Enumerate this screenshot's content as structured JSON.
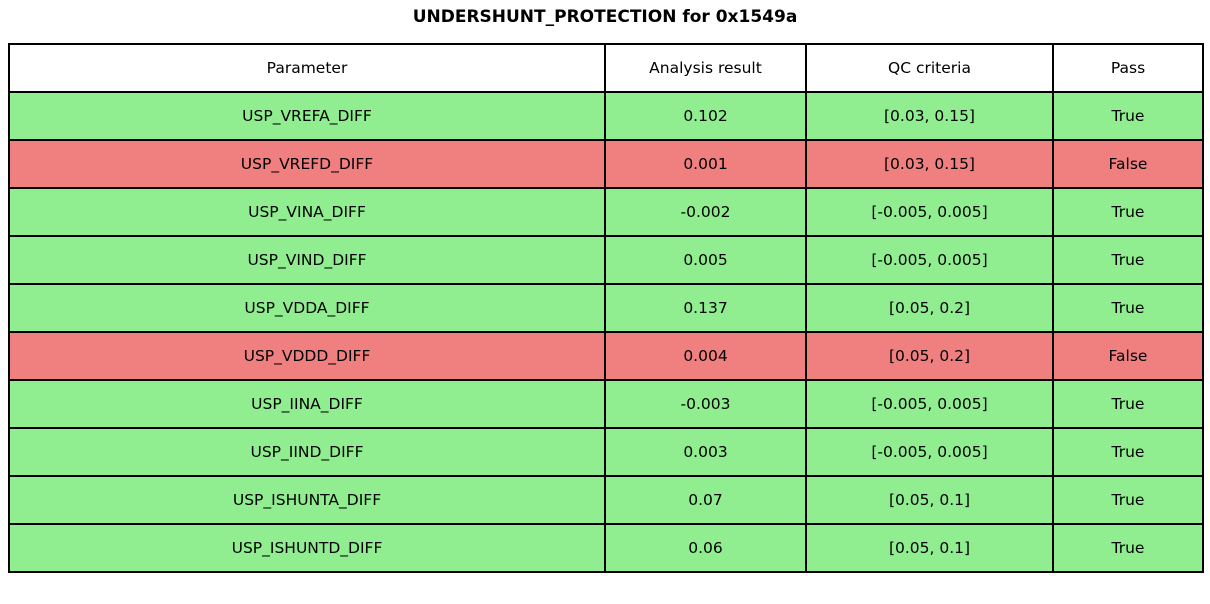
{
  "title": "UNDERSHUNT_PROTECTION for 0x1549a",
  "chart_data": {
    "type": "table",
    "title": "UNDERSHUNT_PROTECTION for 0x1549a",
    "columns": [
      "Parameter",
      "Analysis result",
      "QC criteria",
      "Pass"
    ],
    "rows": [
      {
        "parameter": "USP_VREFA_DIFF",
        "analysis_result": "0.102",
        "qc_criteria": "[0.03, 0.15]",
        "pass": "True"
      },
      {
        "parameter": "USP_VREFD_DIFF",
        "analysis_result": "0.001",
        "qc_criteria": "[0.03, 0.15]",
        "pass": "False"
      },
      {
        "parameter": "USP_VINA_DIFF",
        "analysis_result": "-0.002",
        "qc_criteria": "[-0.005, 0.005]",
        "pass": "True"
      },
      {
        "parameter": "USP_VIND_DIFF",
        "analysis_result": "0.005",
        "qc_criteria": "[-0.005, 0.005]",
        "pass": "True"
      },
      {
        "parameter": "USP_VDDA_DIFF",
        "analysis_result": "0.137",
        "qc_criteria": "[0.05, 0.2]",
        "pass": "True"
      },
      {
        "parameter": "USP_VDDD_DIFF",
        "analysis_result": "0.004",
        "qc_criteria": "[0.05, 0.2]",
        "pass": "False"
      },
      {
        "parameter": "USP_IINA_DIFF",
        "analysis_result": "-0.003",
        "qc_criteria": "[-0.005, 0.005]",
        "pass": "True"
      },
      {
        "parameter": "USP_IIND_DIFF",
        "analysis_result": "0.003",
        "qc_criteria": "[-0.005, 0.005]",
        "pass": "True"
      },
      {
        "parameter": "USP_ISHUNTA_DIFF",
        "analysis_result": "0.07",
        "qc_criteria": "[0.05, 0.1]",
        "pass": "True"
      },
      {
        "parameter": "USP_ISHUNTD_DIFF",
        "analysis_result": "0.06",
        "qc_criteria": "[0.05, 0.1]",
        "pass": "True"
      }
    ]
  },
  "colors": {
    "pass_row": "#90EE90",
    "fail_row": "#F08080",
    "header_bg": "#FFFFFF",
    "border": "#000000",
    "text": "#000000"
  }
}
